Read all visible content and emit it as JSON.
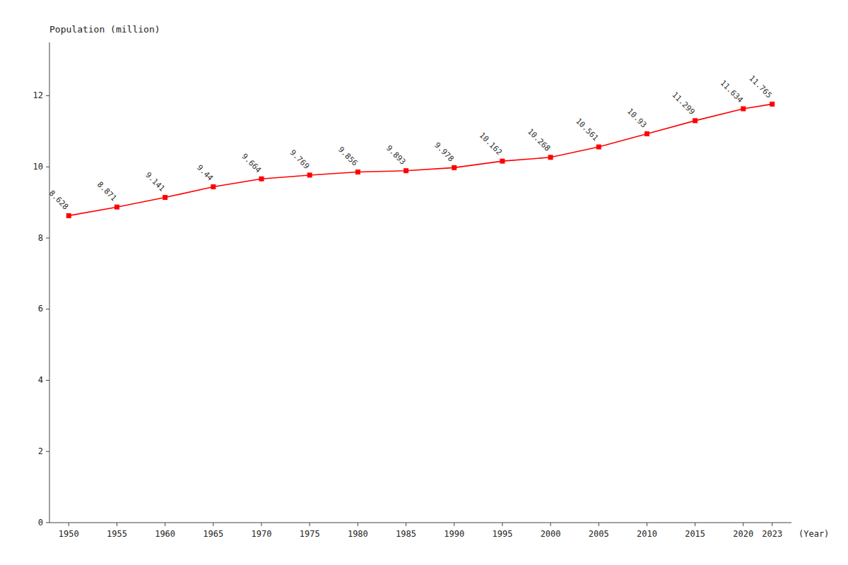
{
  "chart_data": {
    "type": "line",
    "xlabel": "(Year)",
    "ylabel": "Population (million)",
    "x": [
      1950,
      1955,
      1960,
      1965,
      1970,
      1975,
      1980,
      1985,
      1990,
      1995,
      2000,
      2005,
      2010,
      2015,
      2020,
      2023
    ],
    "values": [
      8.628,
      8.871,
      9.141,
      9.44,
      9.664,
      9.769,
      9.856,
      9.893,
      9.978,
      10.162,
      10.268,
      10.561,
      10.93,
      11.299,
      11.634,
      11.765
    ],
    "color": "#ff0000",
    "marker": "square",
    "data_labels": true,
    "grid": false,
    "xlim": [
      1948,
      2025
    ],
    "ylim": [
      0,
      13.5
    ],
    "xticks": [
      1950,
      1955,
      1960,
      1965,
      1970,
      1975,
      1980,
      1985,
      1990,
      1995,
      2000,
      2005,
      2010,
      2015,
      2020,
      2023
    ],
    "yticks": [
      0,
      2,
      4,
      6,
      8,
      10,
      12
    ]
  }
}
